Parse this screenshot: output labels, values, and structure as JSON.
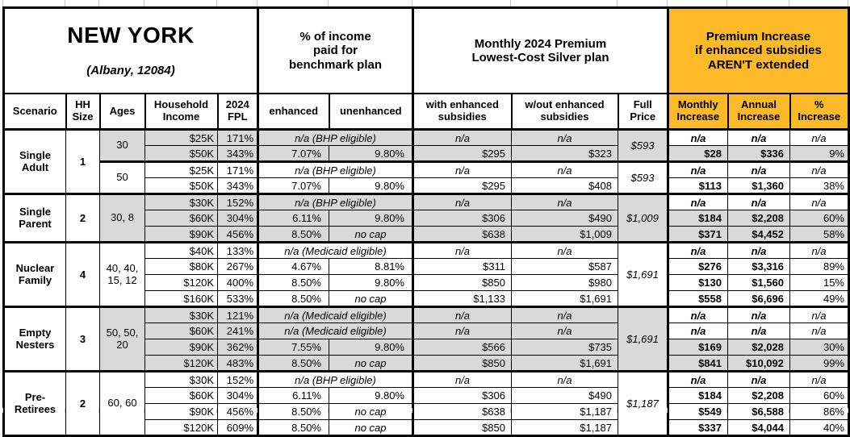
{
  "title": {
    "state": "NEW YORK",
    "location": "(Albany, 12084)"
  },
  "colors": {
    "header_orange": "#FCBA29",
    "row_shade_gray": "#D9D9D9",
    "grid_black": "#000000"
  },
  "header": {
    "pct_income": "% of income\npaid for\nbenchmark plan",
    "premium": "Monthly 2024 Premium\nLowest-Cost Silver plan",
    "increase": "Premium Increase\nif enhanced subsidies\nAREN'T extended",
    "columns": [
      "Scenario",
      "HH\nSize",
      "Ages",
      "Household\nIncome",
      "2024\nFPL",
      "enhanced",
      "unenhanced",
      "with enhanced\nsubsidies",
      "w/out enhanced\nsubsidies",
      "Full\nPrice",
      "Monthly\nIncrease",
      "Annual\nIncrease",
      "%\nIncrease"
    ]
  },
  "groups": [
    {
      "scenario": "Single\nAdult",
      "hh": "1",
      "subgroups": [
        {
          "ages": "30",
          "shade": "gray",
          "full_price": "$593",
          "rows": [
            {
              "income": "$25K",
              "fpl": "171%",
              "note": "n/a (BHP eligible)",
              "with_sub": "n/a",
              "wout_sub": "n/a",
              "monthly": "n/a",
              "annual": "n/a",
              "pct": "n/a"
            },
            {
              "income": "$50K",
              "fpl": "343%",
              "enhanced": "7.07%",
              "unenhanced": "9.80%",
              "with_sub": "$295",
              "wout_sub": "$323",
              "monthly": "$28",
              "annual": "$336",
              "pct": "9%"
            }
          ]
        },
        {
          "ages": "50",
          "shade": "white",
          "full_price": "$593",
          "rows": [
            {
              "income": "$25K",
              "fpl": "171%",
              "note": "n/a (BHP eligible)",
              "with_sub": "n/a",
              "wout_sub": "n/a",
              "monthly": "n/a",
              "annual": "n/a",
              "pct": "n/a"
            },
            {
              "income": "$50K",
              "fpl": "343%",
              "enhanced": "7.07%",
              "unenhanced": "9.80%",
              "with_sub": "$295",
              "wout_sub": "$408",
              "monthly": "$113",
              "annual": "$1,360",
              "pct": "38%"
            }
          ]
        }
      ]
    },
    {
      "scenario": "Single\nParent",
      "hh": "2",
      "subgroups": [
        {
          "ages": "30, 8",
          "shade": "gray",
          "full_price": "$1,009",
          "rows": [
            {
              "income": "$30K",
              "fpl": "152%",
              "note": "n/a (BHP eligible)",
              "with_sub": "n/a",
              "wout_sub": "n/a",
              "monthly": "n/a",
              "annual": "n/a",
              "pct": "n/a"
            },
            {
              "income": "$60K",
              "fpl": "304%",
              "enhanced": "6.11%",
              "unenhanced": "9.80%",
              "with_sub": "$306",
              "wout_sub": "$490",
              "monthly": "$184",
              "annual": "$2,208",
              "pct": "60%"
            },
            {
              "income": "$90K",
              "fpl": "456%",
              "enhanced": "8.50%",
              "unenhanced": "no cap",
              "with_sub": "$638",
              "wout_sub": "$1,009",
              "monthly": "$371",
              "annual": "$4,452",
              "pct": "58%"
            }
          ]
        }
      ]
    },
    {
      "scenario": "Nuclear\nFamily",
      "hh": "4",
      "subgroups": [
        {
          "ages": "40, 40,\n15, 12",
          "shade": "white",
          "full_price": "$1,691",
          "rows": [
            {
              "income": "$40K",
              "fpl": "133%",
              "note": "n/a (Medicaid eligible)",
              "with_sub": "n/a",
              "wout_sub": "n/a",
              "monthly": "n/a",
              "annual": "n/a",
              "pct": "n/a"
            },
            {
              "income": "$80K",
              "fpl": "267%",
              "enhanced": "4.67%",
              "unenhanced": "8.81%",
              "with_sub": "$311",
              "wout_sub": "$587",
              "monthly": "$276",
              "annual": "$3,316",
              "pct": "89%"
            },
            {
              "income": "$120K",
              "fpl": "400%",
              "enhanced": "8.50%",
              "unenhanced": "9.80%",
              "with_sub": "$850",
              "wout_sub": "$980",
              "monthly": "$130",
              "annual": "$1,560",
              "pct": "15%"
            },
            {
              "income": "$160K",
              "fpl": "533%",
              "enhanced": "8.50%",
              "unenhanced": "no cap",
              "with_sub": "$1,133",
              "wout_sub": "$1,691",
              "monthly": "$558",
              "annual": "$6,696",
              "pct": "49%"
            }
          ]
        }
      ]
    },
    {
      "scenario": "Empty\nNesters",
      "hh": "3",
      "subgroups": [
        {
          "ages": "50, 50,\n20",
          "shade": "gray",
          "full_price": "$1,691",
          "rows": [
            {
              "income": "$30K",
              "fpl": "121%",
              "note": "n/a (Medicaid eligible)",
              "with_sub": "n/a",
              "wout_sub": "n/a",
              "monthly": "n/a",
              "annual": "n/a",
              "pct": "n/a"
            },
            {
              "income": "$60K",
              "fpl": "241%",
              "note": "n/a (Medicaid eligible)",
              "with_sub": "n/a",
              "wout_sub": "n/a",
              "monthly": "n/a",
              "annual": "n/a",
              "pct": "n/a"
            },
            {
              "income": "$90K",
              "fpl": "362%",
              "enhanced": "7.55%",
              "unenhanced": "9.80%",
              "with_sub": "$566",
              "wout_sub": "$735",
              "monthly": "$169",
              "annual": "$2,028",
              "pct": "30%"
            },
            {
              "income": "$120K",
              "fpl": "483%",
              "enhanced": "8.50%",
              "unenhanced": "no cap",
              "with_sub": "$850",
              "wout_sub": "$1,691",
              "monthly": "$841",
              "annual": "$10,092",
              "pct": "99%"
            }
          ]
        }
      ]
    },
    {
      "scenario": "Pre-\nRetirees",
      "hh": "2",
      "subgroups": [
        {
          "ages": "60, 60",
          "shade": "white",
          "full_price": "$1,187",
          "rows": [
            {
              "income": "$30K",
              "fpl": "152%",
              "note": "n/a (BHP eligible)",
              "with_sub": "n/a",
              "wout_sub": "n/a",
              "monthly": "n/a",
              "annual": "n/a",
              "pct": "n/a"
            },
            {
              "income": "$60K",
              "fpl": "304%",
              "enhanced": "6.11%",
              "unenhanced": "9.80%",
              "with_sub": "$306",
              "wout_sub": "$490",
              "monthly": "$184",
              "annual": "$2,208",
              "pct": "60%"
            },
            {
              "income": "$90K",
              "fpl": "456%",
              "enhanced": "8.50%",
              "unenhanced": "no cap",
              "with_sub": "$638",
              "wout_sub": "$1,187",
              "monthly": "$549",
              "annual": "$6,588",
              "pct": "86%"
            },
            {
              "income": "$120K",
              "fpl": "609%",
              "enhanced": "8.50%",
              "unenhanced": "no cap",
              "with_sub": "$850",
              "wout_sub": "$1,187",
              "monthly": "$337",
              "annual": "$4,044",
              "pct": "40%"
            }
          ]
        }
      ]
    }
  ]
}
